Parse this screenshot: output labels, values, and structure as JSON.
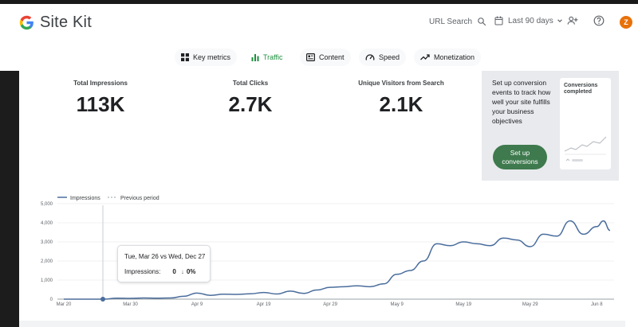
{
  "header": {
    "app_name": "Site Kit",
    "search_label": "URL Search",
    "date_range": "Last 90 days",
    "avatar_initial": "Z"
  },
  "nav": {
    "tabs": [
      {
        "label": "Key metrics",
        "icon": "grid-icon"
      },
      {
        "label": "Traffic",
        "icon": "bar-chart-icon",
        "active": true
      },
      {
        "label": "Content",
        "icon": "content-icon"
      },
      {
        "label": "Speed",
        "icon": "speedometer-icon"
      },
      {
        "label": "Monetization",
        "icon": "trending-up-icon"
      }
    ]
  },
  "metrics": [
    {
      "label": "Total Impressions",
      "value": "113K"
    },
    {
      "label": "Total Clicks",
      "value": "2.7K"
    },
    {
      "label": "Unique Visitors from Search",
      "value": "2.1K"
    }
  ],
  "conversions": {
    "text": "Set up conversion events to track how well your site fulfills your business objectives",
    "button_label": "Set up conversions",
    "card_title": "Conversions completed"
  },
  "tooltip": {
    "title": "Tue, Mar 26 vs Wed, Dec 27",
    "label": "Impressions:",
    "value": "0",
    "change": "0%"
  },
  "colors": {
    "series": "#4a6d9c",
    "active_tab": "#1e8e3e",
    "button": "#3e7a4d",
    "avatar": "#e8710a"
  },
  "chart_data": {
    "type": "line",
    "legend": [
      "Impressions",
      "Previous period"
    ],
    "legend_position": "top-left",
    "grid": true,
    "ylim": [
      0,
      5000
    ],
    "y_ticks": [
      "0",
      "1,000",
      "2,000",
      "3,000",
      "4,000",
      "5,000"
    ],
    "x_ticks": [
      "Mar 20",
      "Mar 30",
      "Apr 9",
      "Apr 19",
      "Apr 29",
      "May 9",
      "May 19",
      "May 29",
      "Jun 8"
    ],
    "series": [
      {
        "name": "Impressions",
        "x": [
          "Mar 20",
          "Mar 22",
          "Mar 24",
          "Mar 26",
          "Mar 28",
          "Mar 30",
          "Apr 1",
          "Apr 3",
          "Apr 5",
          "Apr 7",
          "Apr 9",
          "Apr 11",
          "Apr 13",
          "Apr 15",
          "Apr 17",
          "Apr 19",
          "Apr 21",
          "Apr 23",
          "Apr 25",
          "Apr 27",
          "Apr 29",
          "May 1",
          "May 3",
          "May 5",
          "May 7",
          "May 9",
          "May 11",
          "May 13",
          "May 15",
          "May 17",
          "May 19",
          "May 21",
          "May 23",
          "May 25",
          "May 27",
          "May 29",
          "May 31",
          "Jun 2",
          "Jun 4",
          "Jun 6",
          "Jun 8",
          "Jun 9",
          "Jun 10"
        ],
        "values": [
          0,
          0,
          0,
          0,
          50,
          40,
          60,
          50,
          60,
          150,
          320,
          200,
          260,
          250,
          280,
          350,
          270,
          420,
          300,
          480,
          620,
          650,
          700,
          650,
          800,
          1300,
          1500,
          2000,
          2900,
          2800,
          3000,
          2900,
          2800,
          3200,
          3100,
          2750,
          3400,
          3300,
          4100,
          3400,
          3800,
          4100,
          3600
        ]
      }
    ]
  }
}
